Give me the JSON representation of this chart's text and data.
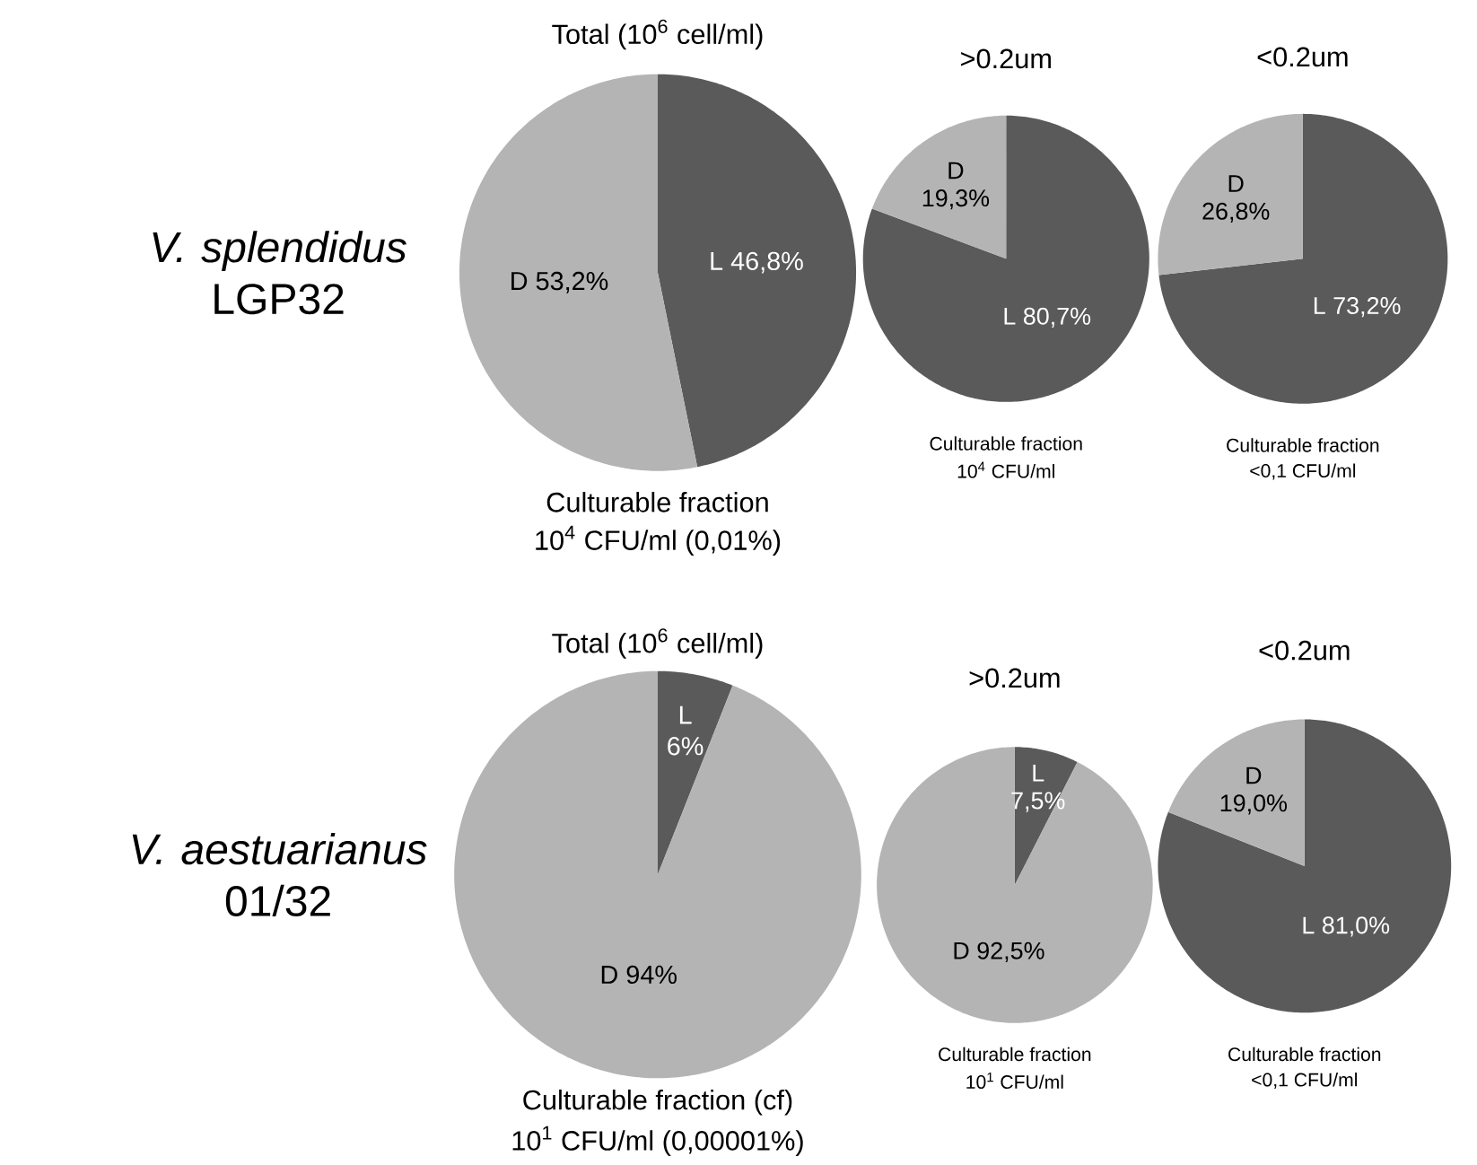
{
  "chart_data": [
    {
      "type": "pie",
      "title": "Total (10$^{6}$ cell/ml)",
      "categories": [
        "L",
        "D"
      ],
      "values": [
        46.8,
        53.2
      ],
      "colors": [
        "#5a5a5a",
        "#b4b4b4"
      ],
      "value_labels": [
        "46,8%",
        "53,2%"
      ],
      "annotations": [
        "Culturable fraction",
        "10$^{4}$ CFU/ml (0,01%)",
        "*V. splendidus* LGP32"
      ]
    },
    {
      "type": "pie",
      "title": ">0.2um",
      "categories": [
        "L",
        "D"
      ],
      "values": [
        80.7,
        19.3
      ],
      "colors": [
        "#5a5a5a",
        "#b4b4b4"
      ],
      "value_labels": [
        "80,7%",
        "19,3%"
      ],
      "annotations": [
        "Culturable fraction",
        "10$^{4}$ CFU/ml"
      ]
    },
    {
      "type": "pie",
      "title": "<0.2um",
      "categories": [
        "L",
        "D"
      ],
      "values": [
        73.2,
        26.8
      ],
      "colors": [
        "#5a5a5a",
        "#b4b4b4"
      ],
      "value_labels": [
        "73,2%",
        "26,8%"
      ],
      "annotations": [
        "Culturable fraction",
        "<0,1 CFU/ml"
      ]
    },
    {
      "type": "pie",
      "title": "Total (10$^{6}$ cell/ml)",
      "categories": [
        "L",
        "D"
      ],
      "values": [
        6,
        94
      ],
      "colors": [
        "#5a5a5a",
        "#b4b4b4"
      ],
      "value_labels": [
        "6%",
        "94%"
      ],
      "annotations": [
        "Culturable fraction (cf)",
        "10$^{1}$ CFU/ml (0,00001%)",
        "*V. aestuarianus* 01/32"
      ]
    },
    {
      "type": "pie",
      "title": ">0.2um",
      "categories": [
        "L",
        "D"
      ],
      "values": [
        7.5,
        92.5
      ],
      "colors": [
        "#5a5a5a",
        "#b4b4b4"
      ],
      "value_labels": [
        "7,5%",
        "92,5%"
      ],
      "annotations": [
        "Culturable fraction",
        "10$^{1}$ CFU/ml"
      ]
    },
    {
      "type": "pie",
      "title": "<0.2um",
      "categories": [
        "L",
        "D"
      ],
      "values": [
        81.0,
        19.0
      ],
      "colors": [
        "#5a5a5a",
        "#b4b4b4"
      ],
      "value_labels": [
        "81,0%",
        "19,0%"
      ],
      "annotations": [
        "Culturable fraction",
        "<0,1 CFU/ml"
      ]
    }
  ]
}
